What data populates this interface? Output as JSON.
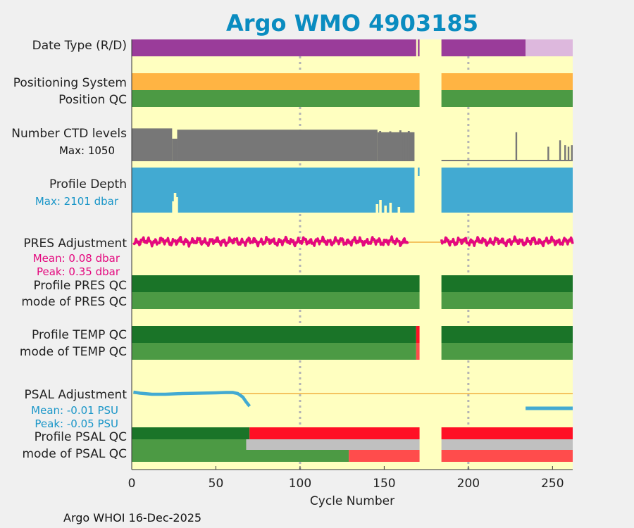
{
  "chart_data": {
    "type": "timeline",
    "title": "Argo WMO 4903185",
    "xlabel": "Cycle Number",
    "xlim": [
      0,
      262
    ],
    "xticks": [
      0,
      50,
      100,
      150,
      200,
      250
    ],
    "grid_x": [
      100,
      200
    ],
    "footer": "Argo WHOI 16-Dec-2025",
    "colors": {
      "background": "#ffffc0",
      "realtime": "#9a3c9a",
      "delayed": "#ddb8dd",
      "positioning": "#ffb443",
      "qc_good": "#4c9a44",
      "qc_good_dark": "#1a7428",
      "qc_bad": "#ff1025",
      "qc_bad_light": "#ff4c4c",
      "qc_gray": "#c0c0c0",
      "ctd_gray": "#777777",
      "depth_blue": "#42aad2",
      "pres_pink": "#e4087e",
      "psal_blue": "#42aad2",
      "zero_line": "#f0b040",
      "label_blue": "#1a96c8"
    },
    "rows": {
      "date_type": {
        "label": "Date Type (R/D)",
        "segments": [
          {
            "from": 0,
            "to": 169,
            "value": "R"
          },
          {
            "from": 170,
            "to": 171,
            "value": "R"
          },
          {
            "from": 184,
            "to": 234,
            "value": "R"
          },
          {
            "from": 234,
            "to": 262,
            "value": "D"
          }
        ]
      },
      "positioning_system": {
        "label": "Positioning System",
        "segments": [
          {
            "from": 0,
            "to": 171
          },
          {
            "from": 184,
            "to": 262
          }
        ]
      },
      "position_qc": {
        "label": "Position QC",
        "segments": [
          {
            "from": 0,
            "to": 171,
            "value": "good"
          },
          {
            "from": 184,
            "to": 262,
            "value": "good"
          }
        ]
      },
      "ctd_levels": {
        "label": "Number CTD levels",
        "max_label": "Max: 1050",
        "max": 1050,
        "early_breaks": [
          {
            "from": 0,
            "to": 24,
            "value": 1020
          },
          {
            "from": 24,
            "to": 27,
            "value": 700
          },
          {
            "from": 27,
            "to": 146,
            "value": 980
          },
          {
            "from": 146,
            "to": 168,
            "value": 900
          }
        ],
        "late_spikes": [
          {
            "cycle": 228,
            "value": 900
          },
          {
            "cycle": 247,
            "value": 450
          },
          {
            "cycle": 254,
            "value": 650
          },
          {
            "cycle": 257,
            "value": 500
          },
          {
            "cycle": 259,
            "value": 450
          },
          {
            "cycle": 261,
            "value": 500
          }
        ]
      },
      "profile_depth": {
        "label": "Profile Depth",
        "max_label": "Max: 2101 dbar",
        "max": 2101,
        "segments": [
          {
            "from": 0,
            "to": 168
          },
          {
            "from": 184,
            "to": 262
          }
        ]
      },
      "pres_adjustment": {
        "label": "PRES Adjustment",
        "mean_label": "Mean: 0.08 dbar",
        "peak_label": "Peak: 0.35 dbar",
        "segments": [
          {
            "from": 1,
            "to": 164
          },
          {
            "from": 184,
            "to": 262
          }
        ]
      },
      "profile_pres_qc": {
        "label": "Profile PRES QC",
        "segments": [
          {
            "from": 0,
            "to": 171,
            "value": "A"
          },
          {
            "from": 184,
            "to": 262,
            "value": "A"
          }
        ]
      },
      "mode_pres_qc": {
        "label": "mode of PRES QC",
        "segments": [
          {
            "from": 0,
            "to": 171,
            "value": "1"
          },
          {
            "from": 184,
            "to": 262,
            "value": "1"
          }
        ]
      },
      "profile_temp_qc": {
        "label": "Profile TEMP QC",
        "segments": [
          {
            "from": 0,
            "to": 169,
            "value": "A"
          },
          {
            "from": 169,
            "to": 171,
            "value": "F"
          },
          {
            "from": 184,
            "to": 262,
            "value": "A"
          }
        ]
      },
      "mode_temp_qc": {
        "label": "mode of TEMP QC",
        "segments": [
          {
            "from": 0,
            "to": 169,
            "value": "1"
          },
          {
            "from": 169,
            "to": 171,
            "value": "4"
          },
          {
            "from": 184,
            "to": 262,
            "value": "1"
          }
        ]
      },
      "psal_adjustment": {
        "label": "PSAL Adjustment",
        "mean_label": "Mean: -0.01 PSU",
        "peak_label": "Peak: -0.05 PSU",
        "points": [
          [
            1,
            0.002
          ],
          [
            5,
            0.0005
          ],
          [
            12,
            -0.001
          ],
          [
            20,
            -0.001
          ],
          [
            30,
            0.0
          ],
          [
            40,
            0.0005
          ],
          [
            50,
            0.001
          ],
          [
            56,
            0.0015
          ],
          [
            60,
            0.0015
          ],
          [
            63,
            0.0
          ],
          [
            66,
            -0.005
          ],
          [
            68,
            -0.012
          ],
          [
            70,
            -0.018
          ]
        ],
        "late_segment": {
          "from": 234,
          "to": 262,
          "value": -0.021
        }
      },
      "profile_psal_qc": {
        "label": "Profile PSAL QC",
        "segments": [
          {
            "from": 0,
            "to": 70,
            "value": "A"
          },
          {
            "from": 70,
            "to": 171,
            "value": "F"
          },
          {
            "from": 184,
            "to": 262,
            "value": "F"
          }
        ]
      },
      "mode_psal_qc": {
        "label": "mode of PSAL QC",
        "segments": [
          {
            "from": 0,
            "to": 68,
            "value": "1"
          },
          {
            "from": 68,
            "to": 171,
            "value": "gray"
          },
          {
            "from": 184,
            "to": 262,
            "value": "gray"
          }
        ],
        "lower_segments": [
          {
            "from": 0,
            "to": 129,
            "value": "1"
          },
          {
            "from": 129,
            "to": 171,
            "value": "4"
          },
          {
            "from": 184,
            "to": 262,
            "value": "4"
          }
        ]
      }
    }
  }
}
